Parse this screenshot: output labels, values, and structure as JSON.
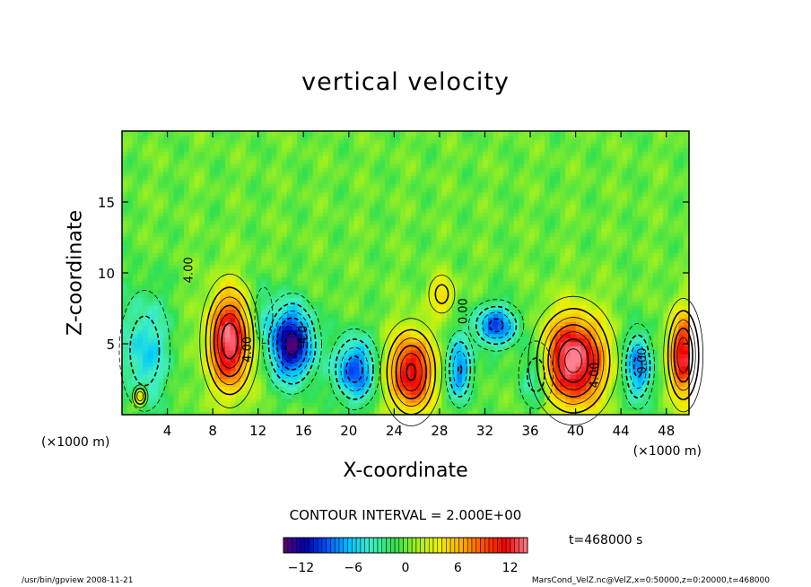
{
  "chart_data": {
    "type": "heatmap",
    "subtype": "filled-contour",
    "title": "vertical velocity",
    "xlabel": "X-coordinate",
    "ylabel": "Z-coordinate",
    "x_unit_label": "(×1000 m)",
    "x_ticks": [
      4,
      8,
      12,
      16,
      20,
      24,
      28,
      32,
      36,
      40,
      44,
      48
    ],
    "y_ticks": [
      5,
      10,
      15
    ],
    "xlim": [
      0,
      50
    ],
    "ylim": [
      0,
      20
    ],
    "contour_interval_text": "CONTOUR INTERVAL = 2.000E+00",
    "colorbar": {
      "range": [
        -14,
        14
      ],
      "ticks": [
        -12,
        -6,
        0,
        6,
        12
      ],
      "tick_labels": [
        "−12",
        "−6",
        "0",
        "6",
        "12"
      ],
      "colormap": [
        "#5a0070",
        "#0000b0",
        "#0058ff",
        "#00c8ff",
        "#40f0c0",
        "#30e050",
        "#a0f020",
        "#f0f000",
        "#ffb000",
        "#ff5000",
        "#f00000",
        "#ff8090"
      ]
    },
    "contour_labels": [
      {
        "text": "4.00",
        "x": 6.2,
        "z": 10.2,
        "rot": -90
      },
      {
        "text": "4.00",
        "x": 11.4,
        "z": 4.6,
        "rot": -90
      },
      {
        "text": "-4.0",
        "x": 16.3,
        "z": 5.5,
        "rot": -90
      },
      {
        "text": "0.00",
        "x": 30.4,
        "z": 7.3,
        "rot": -90
      },
      {
        "text": "4.00",
        "x": 42.0,
        "z": 2.8,
        "rot": -90
      },
      {
        "text": "0.00",
        "x": 46.2,
        "z": 3.8,
        "rot": -90
      }
    ],
    "features": [
      {
        "x": 9.5,
        "z": 5.2,
        "w": 1.1,
        "sx": 1.9,
        "sz": 3.4
      },
      {
        "x": 25.5,
        "z": 3.0,
        "w": 1.0,
        "sx": 2.0,
        "sz": 2.8
      },
      {
        "x": 39.8,
        "z": 3.8,
        "w": 1.2,
        "sx": 2.8,
        "sz": 3.2
      },
      {
        "x": 49.5,
        "z": 4.2,
        "w": 0.95,
        "sx": 1.3,
        "sz": 3.0
      },
      {
        "x": 28.2,
        "z": 8.5,
        "w": 0.4,
        "sx": 1.2,
        "sz": 1.4
      },
      {
        "x": 15.0,
        "z": 5.0,
        "w": -1.05,
        "sx": 1.9,
        "sz": 2.6
      },
      {
        "x": 20.5,
        "z": 3.2,
        "w": -0.75,
        "sx": 1.8,
        "sz": 2.3
      },
      {
        "x": 29.8,
        "z": 3.2,
        "w": -0.65,
        "sx": 1.1,
        "sz": 2.3
      },
      {
        "x": 33.0,
        "z": 6.3,
        "w": -0.7,
        "sx": 2.0,
        "sz": 1.5
      },
      {
        "x": 45.5,
        "z": 3.4,
        "w": -0.7,
        "sx": 1.2,
        "sz": 2.5
      },
      {
        "x": 2.0,
        "z": 4.5,
        "w": -0.45,
        "sx": 2.2,
        "sz": 4.2
      },
      {
        "x": 1.6,
        "z": 1.3,
        "w": 0.6,
        "sx": 0.6,
        "sz": 0.7
      },
      {
        "x": 36.5,
        "z": 2.8,
        "w": -0.4,
        "sx": 1.6,
        "sz": 2.5
      },
      {
        "x": 12.5,
        "z": 7.0,
        "w": -0.3,
        "sx": 1.0,
        "sz": 2.5
      }
    ]
  },
  "labels": {
    "timestamp": "t=468000 s",
    "footer_left": "/usr/bin/gpview   2008-11-21",
    "footer_right": "MarsCond_VelZ.nc@VelZ,x=0:50000,z=0:20000,t=468000"
  }
}
